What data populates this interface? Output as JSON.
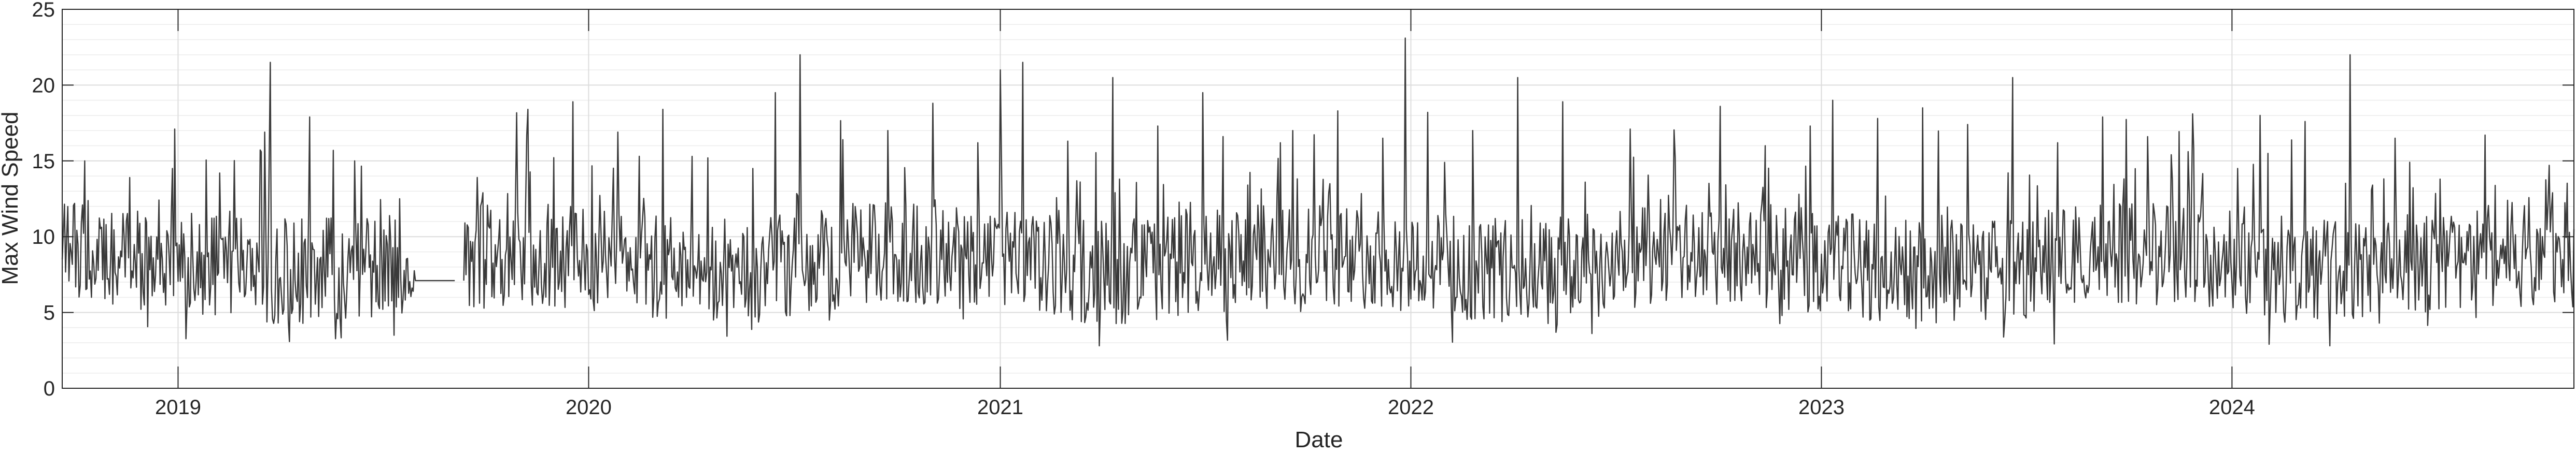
{
  "chart_data": {
    "type": "line",
    "title": "",
    "xlabel": "Date",
    "ylabel": "Max Wind Speed",
    "xlim": [
      "2018-09-20",
      "2024-10-31"
    ],
    "ylim": [
      0,
      25
    ],
    "yticks": [
      0,
      5,
      10,
      15,
      20,
      25
    ],
    "xticks": [
      "2019-01-01",
      "2020-01-01",
      "2021-01-01",
      "2022-01-01",
      "2023-01-01",
      "2024-01-01"
    ],
    "xtick_labels": [
      "2019",
      "2020",
      "2021",
      "2022",
      "2023",
      "2024"
    ],
    "grid": true,
    "minor_grid": true,
    "legend": "none",
    "series_color": "#3a3a3a",
    "grid_color": "#dcdcdc",
    "series": [
      {
        "frequency": "daily",
        "x": [
          "2018-09-20",
          "2018-10-10",
          "2018-10-30",
          "2018-11-19",
          "2018-12-09",
          "2018-12-29",
          "2019-01-18",
          "2019-02-07",
          "2019-02-27",
          "2019-03-19",
          "2019-03-24",
          "2019-04-08",
          "2019-04-28",
          "2019-05-18",
          "2019-06-07",
          "2019-06-27",
          "2019-07-17",
          "2019-07-25",
          "2019-08-14",
          "2019-09-03",
          "2019-09-05",
          "2019-09-12",
          "2019-09-29",
          "2019-10-19",
          "2019-11-08",
          "2019-11-28",
          "2019-12-18",
          "2020-01-07",
          "2020-01-27",
          "2020-02-16",
          "2020-03-07",
          "2020-03-27",
          "2020-04-16",
          "2020-05-06",
          "2020-05-26",
          "2020-06-15",
          "2020-07-05",
          "2020-07-07",
          "2020-07-25",
          "2020-08-14",
          "2020-09-03",
          "2020-09-23",
          "2020-10-13",
          "2020-11-02",
          "2020-11-22",
          "2020-12-12",
          "2021-01-01",
          "2021-01-11",
          "2021-01-21",
          "2021-02-10",
          "2021-03-02",
          "2021-03-22",
          "2021-04-11",
          "2021-05-01",
          "2021-05-21",
          "2021-06-10",
          "2021-06-30",
          "2021-07-20",
          "2021-08-09",
          "2021-08-29",
          "2021-09-18",
          "2021-10-08",
          "2021-10-28",
          "2021-11-17",
          "2021-12-07",
          "2021-12-27",
          "2021-12-29",
          "2022-01-16",
          "2022-02-05",
          "2022-02-25",
          "2022-03-17",
          "2022-04-06",
          "2022-04-26",
          "2022-05-16",
          "2022-06-05",
          "2022-06-25",
          "2022-07-15",
          "2022-08-04",
          "2022-08-24",
          "2022-09-13",
          "2022-10-03",
          "2022-10-23",
          "2022-11-12",
          "2022-12-02",
          "2022-12-22",
          "2023-01-11",
          "2023-01-31",
          "2023-02-20",
          "2023-03-12",
          "2023-04-01",
          "2023-04-21",
          "2023-05-11",
          "2023-05-31",
          "2023-06-20",
          "2023-07-10",
          "2023-07-30",
          "2023-08-19",
          "2023-09-08",
          "2023-09-28",
          "2023-10-18",
          "2023-11-07",
          "2023-11-27",
          "2023-12-17",
          "2024-01-06",
          "2024-01-26",
          "2024-02-15",
          "2024-03-06",
          "2024-03-26",
          "2024-04-15",
          "2024-05-05",
          "2024-05-25",
          "2024-06-14",
          "2024-07-04",
          "2024-07-24",
          "2024-08-13",
          "2024-09-02",
          "2024-09-22",
          "2024-10-12",
          "2024-10-31"
        ],
        "y": [
          8.5,
          15,
          7.2,
          13.9,
          6.1,
          17.1,
          9.0,
          14.2,
          7.8,
          16.9,
          21.5,
          9.4,
          17.9,
          7.5,
          15.0,
          8.1,
          12.5,
          6.8,
          8.2,
          7.0,
          7.1,
          7.1,
          12.9,
          8.8,
          18.4,
          7.9,
          18.9,
          10.2,
          16.9,
          8.6,
          18.4,
          9.3,
          15.2,
          9.8,
          14.5,
          19.5,
          12.7,
          22.0,
          9.1,
          16.4,
          8.3,
          17.0,
          8.9,
          18.8,
          7.7,
          16.2,
          21.0,
          6.3,
          21.5,
          8.5,
          16.3,
          9.0,
          20.5,
          8.4,
          17.3,
          7.6,
          19.5,
          9.2,
          13.4,
          8.0,
          17.0,
          8.7,
          18.3,
          9.5,
          16.5,
          23.1,
          8.8,
          18.2,
          9.7,
          17.0,
          11.2,
          20.5,
          10.9,
          18.9,
          13.6,
          8.9,
          17.1,
          9.2,
          15.2,
          8.1,
          18.6,
          9.0,
          16.0,
          8.4,
          17.3,
          19.0,
          7.6,
          17.8,
          8.2,
          18.5,
          9.3,
          17.4,
          7.9,
          20.5,
          8.6,
          16.2,
          9.4,
          17.9,
          7.4,
          16.6,
          8.8,
          18.1,
          9.1,
          14.5,
          18.0,
          8.2,
          17.6,
          11.0,
          22.0,
          13.4,
          16.5,
          9.6,
          13.8,
          8.3,
          16.7,
          12.4,
          9.2,
          12.9,
          10.5
        ]
      }
    ]
  }
}
